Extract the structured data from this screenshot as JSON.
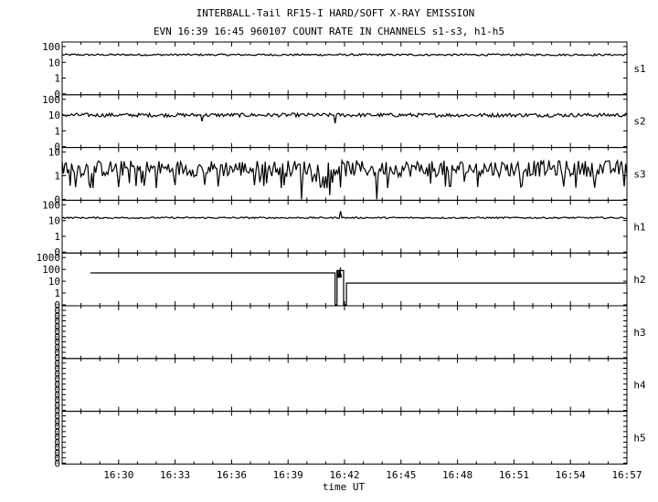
{
  "title_line1": "INTERBALL-Tail RF15-I HARD/SOFT X-RAY EMISSION",
  "title_line2": "EVN 16:39 16:45 960107  COUNT RATE IN CHANNELS s1-s3, h1-h5",
  "chart_data": {
    "type": "line",
    "title": "INTERBALL-Tail RF15-I HARD/SOFT X-RAY EMISSION",
    "subtitle": "EVN 16:39 16:45 960107  COUNT RATE IN CHANNELS s1-s3, h1-h5",
    "xlabel": "time UT",
    "x_tick_labels": [
      "16:30",
      "16:33",
      "16:36",
      "16:39",
      "16:42",
      "16:45",
      "16:48",
      "16:51",
      "16:54",
      "16:57"
    ],
    "x_range_minutes": [
      16.5,
      45
    ],
    "grid": false,
    "panels": [
      {
        "name": "s1",
        "yscale": "log",
        "y_tick_labels": [
          "100",
          "10",
          "1",
          "0"
        ],
        "baseline": 30,
        "noise": 0.06,
        "spikes": []
      },
      {
        "name": "s2",
        "yscale": "log",
        "y_tick_labels": [
          "100",
          "10",
          "1",
          "0"
        ],
        "baseline": 10,
        "noise": 0.12,
        "spikes": [
          {
            "t": 34.4,
            "v": 4
          },
          {
            "t": 41.5,
            "v": 3
          }
        ]
      },
      {
        "name": "s3",
        "yscale": "log",
        "y_tick_labels": [
          "10",
          "1",
          "0"
        ],
        "baseline": 2,
        "noise": 0.35,
        "spikes": [
          {
            "t": 39.7,
            "v": 0
          },
          {
            "t": 43.7,
            "v": 0
          },
          {
            "t": 41.2,
            "v": 0.15
          },
          {
            "t": 33.0,
            "v": 0.4
          },
          {
            "t": 35.3,
            "v": 0.35
          },
          {
            "t": 44.3,
            "v": 0.3
          },
          {
            "t": 47.6,
            "v": 0.35
          }
        ]
      },
      {
        "name": "h1",
        "yscale": "log",
        "y_tick_labels": [
          "100",
          "10",
          "1",
          "0"
        ],
        "baseline": 15,
        "noise": 0.05,
        "spikes": [
          {
            "t": 41.8,
            "v": 40
          }
        ]
      },
      {
        "name": "h2",
        "yscale": "log",
        "y_tick_labels": [
          "1000",
          "100",
          "10",
          "1",
          "0"
        ],
        "segments": [
          {
            "from": 28.5,
            "to": 41.5,
            "v": 50
          },
          {
            "from": 41.5,
            "to": 41.6,
            "v": 0
          },
          {
            "from": 41.6,
            "to": 41.95,
            "v": 80
          },
          {
            "from": 41.95,
            "to": 42.1,
            "v": 0
          },
          {
            "from": 42.1,
            "to": 57.0,
            "v": 7
          }
        ]
      },
      {
        "name": "h3",
        "yscale": "log",
        "y_tick_labels": [
          "0",
          "0",
          "0",
          "0",
          "0",
          "0",
          "0",
          "0",
          "0",
          "0"
        ],
        "baseline": null
      },
      {
        "name": "h4",
        "yscale": "log",
        "y_tick_labels": [
          "0",
          "0",
          "0",
          "0",
          "0",
          "0",
          "0",
          "0",
          "0",
          "0"
        ],
        "baseline": null
      },
      {
        "name": "h5",
        "yscale": "log",
        "y_tick_labels": [
          "0",
          "0",
          "0",
          "0",
          "0",
          "0",
          "0",
          "0",
          "0",
          "0"
        ],
        "baseline": null
      }
    ]
  }
}
